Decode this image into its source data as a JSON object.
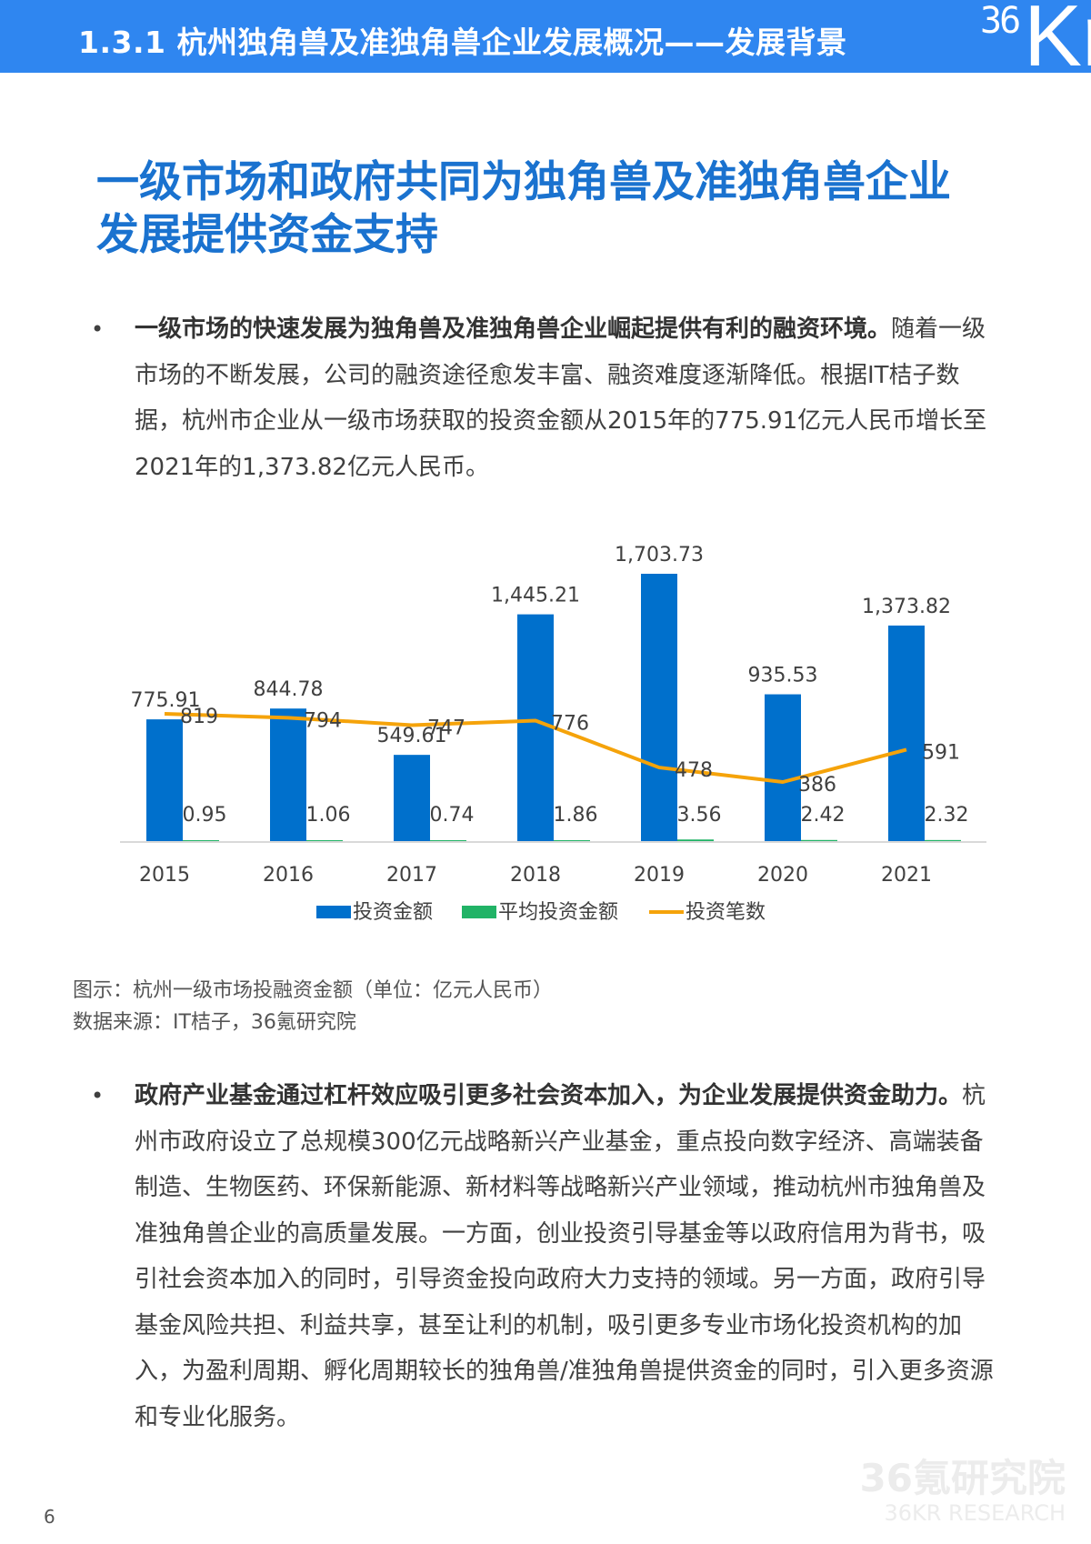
{
  "header": {
    "section_title": "1.3.1 杭州独角兽及准独角兽企业发展概况——发展背景",
    "logo_small": "36",
    "logo_large": "Kr"
  },
  "main_title": {
    "line1": "一级市场和政府共同为独角兽及准独角兽企业",
    "line2": "发展提供资金支持"
  },
  "paragraphs": [
    {
      "bullet": "•",
      "bold": "一级市场的快速发展为独角兽及准独角兽企业崛起提供有利的融资环境。",
      "text": "随着一级市场的不断发展，公司的融资途径愈发丰富、融资难度逐渐降低。根据IT桔子数据，杭州市企业从一级市场获取的投资金额从2015年的775.91亿元人民币增长至2021年的1,373.82亿元人民币。"
    },
    {
      "bullet": "•",
      "bold": "政府产业基金通过杠杆效应吸引更多社会资本加入，为企业发展提供资金助力。",
      "text": "杭州市政府设立了总规模300亿元战略新兴产业基金，重点投向数字经济、高端装备制造、生物医药、环保新能源、新材料等战略新兴产业领域，推动杭州市独角兽及准独角兽企业的高质量发展。一方面，创业投资引导基金等以政府信用为背书，吸引社会资本加入的同时，引导资金投向政府大力支持的领域。另一方面，政府引导基金风险共担、利益共享，甚至让利的机制，吸引更多专业市场化投资机构的加入，为盈利周期、孵化周期较长的独角兽/准独角兽提供资金的同时，引入更多资源和专业化服务。"
    }
  ],
  "chart_data": {
    "type": "bar",
    "title": "",
    "categories": [
      "2015",
      "2016",
      "2017",
      "2018",
      "2019",
      "2020",
      "2021"
    ],
    "series": [
      {
        "name": "投资金额",
        "type": "bar",
        "color": "#0070cc",
        "values": [
          775.91,
          844.78,
          549.61,
          1445.21,
          1703.73,
          935.53,
          1373.82
        ],
        "labels": [
          "775.91",
          "844.78",
          "549.61",
          "1,445.21",
          "1,703.73",
          "935.53",
          "1,373.82"
        ]
      },
      {
        "name": "平均投资金额",
        "type": "bar",
        "color": "#21b366",
        "values": [
          0.95,
          1.06,
          0.74,
          1.86,
          3.56,
          2.42,
          2.32
        ],
        "labels": [
          "0.95",
          "1.06",
          "0.74",
          "1.86",
          "3.56",
          "2.42",
          "2.32"
        ]
      },
      {
        "name": "投资笔数",
        "type": "line",
        "color": "#f5a30a",
        "values": [
          819,
          794,
          747,
          776,
          478,
          386,
          591
        ],
        "labels": [
          "819",
          "794",
          "747",
          "776",
          "478",
          "386",
          "591"
        ]
      }
    ],
    "xlabel": "",
    "ylabel": "",
    "grid": false,
    "legend_position": "bottom",
    "unit": "亿元人民币"
  },
  "chart_legend": [
    {
      "label": "投资金额",
      "color": "#0070cc",
      "shape": "rect"
    },
    {
      "label": "平均投资金额",
      "color": "#21b366",
      "shape": "rect"
    },
    {
      "label": "投资笔数",
      "color": "#f5a30a",
      "shape": "line"
    }
  ],
  "caption": {
    "figure": "图示：杭州一级市场投融资金额（单位：亿元人民币）",
    "source": "数据来源：IT桔子，36氪研究院"
  },
  "footer": {
    "page_number": "6",
    "watermark_cn": "36氪研究院",
    "watermark_en": "36KR RESEARCH"
  }
}
